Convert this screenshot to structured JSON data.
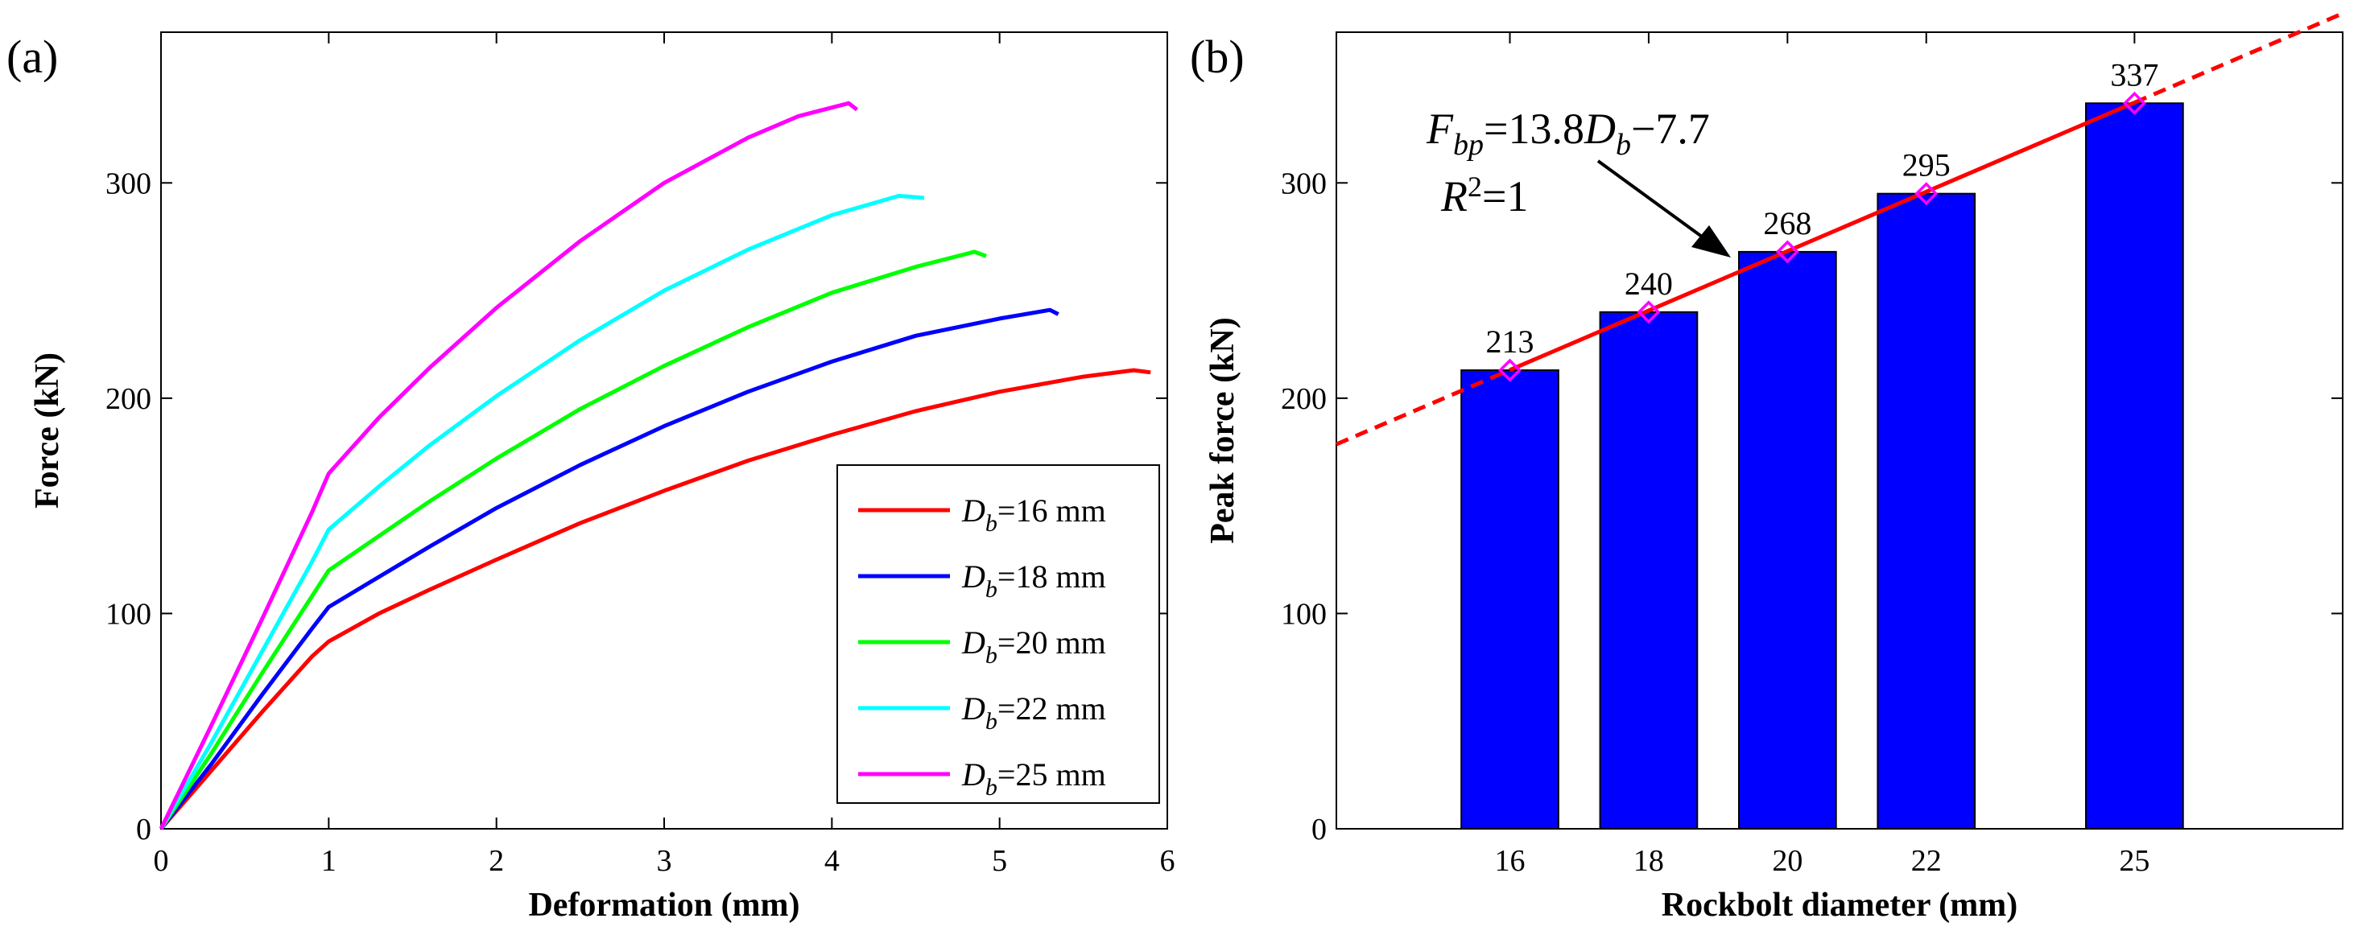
{
  "chart_data": [
    {
      "type": "line",
      "panel_label": "(a)",
      "xlabel": "Deformation (mm)",
      "ylabel": "Force (kN)",
      "xlim": [
        0,
        6
      ],
      "ylim": [
        0,
        370
      ],
      "xticks": [
        0,
        1,
        2,
        3,
        4,
        5,
        6
      ],
      "yticks": [
        0,
        100,
        200,
        300
      ],
      "legend_position": "bottom-right",
      "series": [
        {
          "var": "D",
          "sub": "b",
          "rest": "=16 mm",
          "color": "#ff0000",
          "x": [
            0,
            0.3,
            0.6,
            0.9,
            1.0,
            1.3,
            1.6,
            2.0,
            2.5,
            3.0,
            3.5,
            4.0,
            4.5,
            5.0,
            5.5,
            5.8,
            5.9
          ],
          "y": [
            0,
            27,
            54,
            80,
            87,
            100,
            111,
            125,
            142,
            157,
            171,
            183,
            194,
            203,
            210,
            213,
            212
          ]
        },
        {
          "var": "D",
          "sub": "b",
          "rest": "=18 mm",
          "color": "#0000ff",
          "x": [
            0,
            0.3,
            0.6,
            0.9,
            1.0,
            1.3,
            1.6,
            2.0,
            2.5,
            3.0,
            3.5,
            4.0,
            4.5,
            5.0,
            5.3,
            5.35
          ],
          "y": [
            0,
            30,
            62,
            93,
            103,
            117,
            131,
            149,
            169,
            187,
            203,
            217,
            229,
            237,
            241,
            239
          ]
        },
        {
          "var": "D",
          "sub": "b",
          "rest": "=20 mm",
          "color": "#00ff00",
          "x": [
            0,
            0.3,
            0.6,
            0.9,
            1.0,
            1.3,
            1.6,
            2.0,
            2.5,
            3.0,
            3.5,
            4.0,
            4.5,
            4.85,
            4.92
          ],
          "y": [
            0,
            35,
            72,
            108,
            120,
            136,
            152,
            172,
            195,
            215,
            233,
            249,
            261,
            268,
            266
          ]
        },
        {
          "var": "D",
          "sub": "b",
          "rest": "=22 mm",
          "color": "#00ffff",
          "x": [
            0,
            0.3,
            0.6,
            0.9,
            1.0,
            1.3,
            1.6,
            2.0,
            2.5,
            3.0,
            3.5,
            4.0,
            4.4,
            4.55
          ],
          "y": [
            0,
            40,
            82,
            124,
            139,
            159,
            178,
            201,
            227,
            250,
            269,
            285,
            294,
            293
          ]
        },
        {
          "var": "D",
          "sub": "b",
          "rest": "=25 mm",
          "color": "#ff00ff",
          "x": [
            0,
            0.3,
            0.6,
            0.9,
            1.0,
            1.3,
            1.6,
            2.0,
            2.5,
            3.0,
            3.5,
            3.8,
            4.1,
            4.15
          ],
          "y": [
            0,
            48,
            97,
            147,
            165,
            191,
            214,
            242,
            273,
            300,
            321,
            331,
            337,
            334
          ]
        }
      ]
    },
    {
      "type": "bar",
      "panel_label": "(b)",
      "xlabel": "Rockbolt diameter (mm)",
      "ylabel": "Peak force (kN)",
      "xlim": [
        13.5,
        28
      ],
      "ylim": [
        0,
        370
      ],
      "yticks": [
        0,
        100,
        200,
        300
      ],
      "categories": [
        "16",
        "18",
        "20",
        "22",
        "25"
      ],
      "x": [
        16,
        18,
        20,
        22,
        25
      ],
      "values": [
        213,
        240,
        268,
        295,
        337
      ],
      "value_labels": [
        "213",
        "240",
        "268",
        "295",
        "337"
      ],
      "bar_color": "#0000ff",
      "fit": {
        "slope": 13.8,
        "intercept": -7.7,
        "color": "#ff0000",
        "marker_color": "#ff00ff",
        "equation": {
          "v1": "F",
          "s1": "bp",
          "m1": "=13.8",
          "v2": "D",
          "s2": "b",
          "m2": "−7.7"
        },
        "r2": {
          "v": "R",
          "sup": "2",
          "rest": "=1"
        }
      }
    }
  ]
}
